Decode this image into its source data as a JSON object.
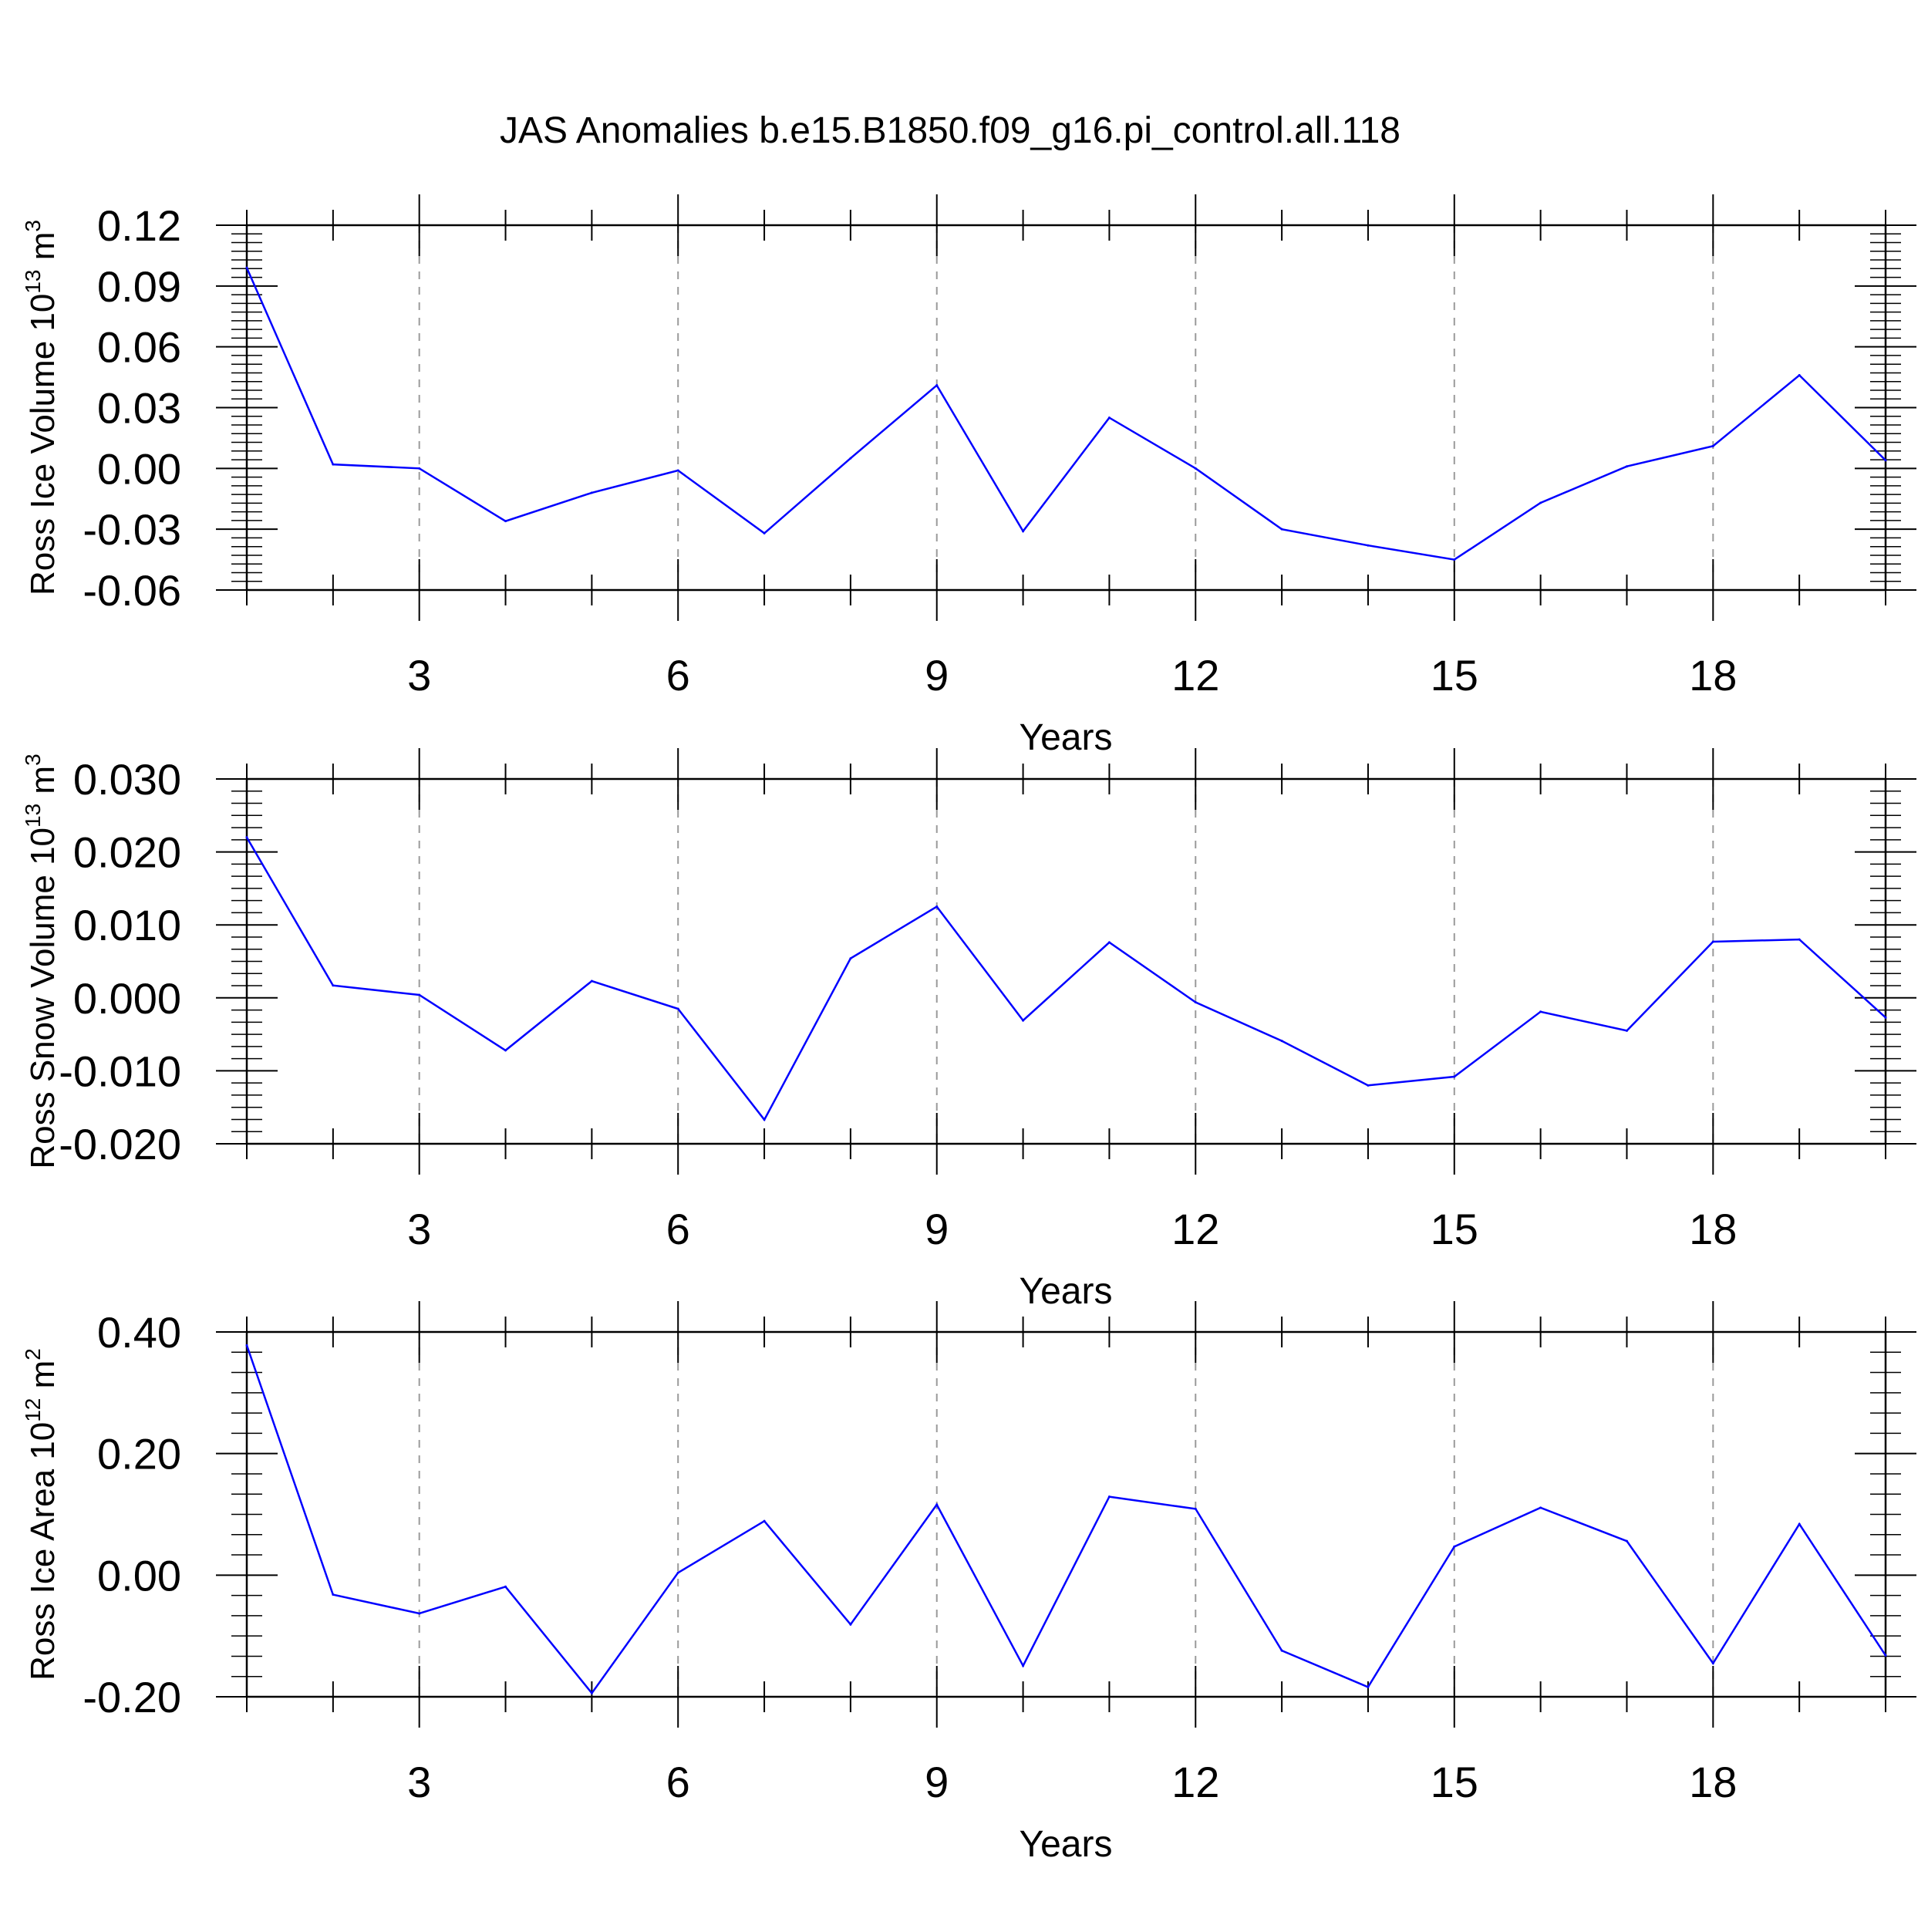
{
  "title": "JAS Anomalies b.e15.B1850.f09_g16.pi_control.all.118",
  "colors": {
    "series": "#0000ff",
    "axis": "#000000",
    "grid": "#9a9a9a"
  },
  "chart_data": [
    {
      "type": "line",
      "ylabel": "Ross Ice Volume 10",
      "ylabel_exp": "13",
      "ylabel_unit": " m",
      "ylabel_unit_exp": "3",
      "xlabel": "Years",
      "xlim": [
        1,
        20
      ],
      "ylim": [
        -0.06,
        0.12
      ],
      "xticks": [
        3,
        6,
        9,
        12,
        15,
        18
      ],
      "xtick_labels": [
        "3",
        "6",
        "9",
        "12",
        "15",
        "18"
      ],
      "yticks": [
        -0.06,
        -0.03,
        0.0,
        0.03,
        0.06,
        0.09,
        0.12
      ],
      "ytick_labels": [
        "-0.06",
        "-0.03",
        "0.00",
        "0.03",
        "0.06",
        "0.09",
        "0.12"
      ],
      "grid": "vertical dashed at labelled x ticks",
      "x": [
        1,
        2,
        3,
        4,
        5,
        6,
        7,
        8,
        9,
        10,
        11,
        12,
        13,
        14,
        15,
        16,
        17,
        18,
        19,
        20
      ],
      "y": [
        0.099,
        0.002,
        0.0,
        -0.026,
        -0.012,
        -0.001,
        -0.032,
        0.005,
        0.041,
        -0.031,
        0.025,
        0.0,
        -0.03,
        -0.038,
        -0.045,
        -0.017,
        0.001,
        0.011,
        0.046,
        0.004
      ]
    },
    {
      "type": "line",
      "ylabel": "Ross Snow Volume 10",
      "ylabel_exp": "13",
      "ylabel_unit": " m",
      "ylabel_unit_exp": "3",
      "xlabel": "Years",
      "xlim": [
        1,
        20
      ],
      "ylim": [
        -0.02,
        0.03
      ],
      "xticks": [
        3,
        6,
        9,
        12,
        15,
        18
      ],
      "xtick_labels": [
        "3",
        "6",
        "9",
        "12",
        "15",
        "18"
      ],
      "yticks": [
        -0.02,
        -0.01,
        0.0,
        0.01,
        0.02,
        0.03
      ],
      "ytick_labels": [
        "-0.020",
        "-0.010",
        "0.000",
        "0.010",
        "0.020",
        "0.030"
      ],
      "grid": "vertical dashed at labelled x ticks",
      "x": [
        1,
        2,
        3,
        4,
        5,
        6,
        7,
        8,
        9,
        10,
        11,
        12,
        13,
        14,
        15,
        16,
        17,
        18,
        19,
        20
      ],
      "y": [
        0.022,
        0.0017,
        0.0004,
        -0.0072,
        0.0023,
        -0.0015,
        -0.0167,
        0.0054,
        0.0125,
        -0.0031,
        0.0076,
        -0.0006,
        -0.0059,
        -0.012,
        -0.0108,
        -0.0019,
        -0.0045,
        0.0077,
        0.008,
        -0.0027
      ]
    },
    {
      "type": "line",
      "ylabel": "Ross Ice Area 10",
      "ylabel_exp": "12",
      "ylabel_unit": " m",
      "ylabel_unit_exp": "2",
      "xlabel": "Years",
      "xlim": [
        1,
        20
      ],
      "ylim": [
        -0.2,
        0.4
      ],
      "xticks": [
        3,
        6,
        9,
        12,
        15,
        18
      ],
      "xtick_labels": [
        "3",
        "6",
        "9",
        "12",
        "15",
        "18"
      ],
      "yticks": [
        -0.2,
        0.0,
        0.2,
        0.4
      ],
      "ytick_labels": [
        "-0.20",
        "0.00",
        "0.20",
        "0.40"
      ],
      "grid": "vertical dashed at labelled x ticks",
      "x": [
        1,
        2,
        3,
        4,
        5,
        6,
        7,
        8,
        9,
        10,
        11,
        12,
        13,
        14,
        15,
        16,
        17,
        18,
        19,
        20
      ],
      "y": [
        0.378,
        -0.032,
        -0.063,
        -0.019,
        -0.194,
        0.004,
        0.089,
        -0.081,
        0.116,
        -0.149,
        0.129,
        0.109,
        -0.124,
        -0.184,
        0.047,
        0.111,
        0.056,
        -0.145,
        0.084,
        -0.132
      ]
    }
  ]
}
